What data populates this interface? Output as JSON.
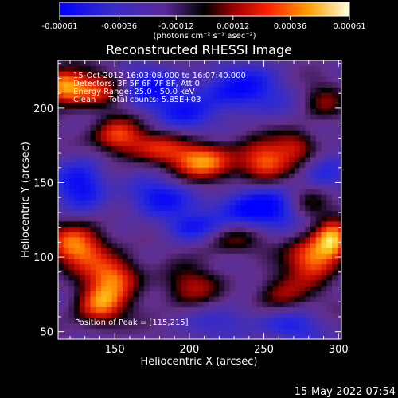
{
  "chart_data": {
    "type": "heatmap",
    "title": "Reconstructed RHESSI Image",
    "xlabel": "Heliocentric X (arcsec)",
    "ylabel": "Heliocentric Y (arcsec)",
    "xlim": [
      112,
      302
    ],
    "ylim": [
      45,
      232
    ],
    "x_ticks": [
      150,
      200,
      250,
      300
    ],
    "y_ticks": [
      50,
      100,
      150,
      200
    ],
    "colorbar": {
      "min": -0.00061,
      "max": 0.00061,
      "tick_labels": [
        "-0.00061",
        "-0.00036",
        "-0.00012",
        "0.00012",
        "0.00036",
        "0.00061"
      ],
      "tick_values": [
        -0.00061,
        -0.00036,
        -0.00012,
        0.00012,
        0.00036,
        0.00061
      ],
      "unit_label": "(photons cm⁻² s⁻¹ asec⁻²)"
    },
    "annotations": [
      "15-Oct-2012 16:03:08.000 to 16:07:40.000",
      "Detectors: 3F 5F 6F 7F 8F, Att 0",
      "Energy Range: 25.0 - 50.0 keV",
      "Clean     Total counts: 5.85E+03"
    ],
    "peak_label": "Position of Peak = [115,215]",
    "peak_position": [
      115,
      215
    ],
    "blobs": [
      {
        "x": 115,
        "y": 215,
        "amp": 1.0,
        "sx": 10,
        "sy": 8
      },
      {
        "x": 138,
        "y": 212,
        "amp": 0.75,
        "sx": 14,
        "sy": 9
      },
      {
        "x": 152,
        "y": 182,
        "amp": 0.85,
        "sx": 12,
        "sy": 9
      },
      {
        "x": 178,
        "y": 173,
        "amp": 0.55,
        "sx": 14,
        "sy": 8
      },
      {
        "x": 210,
        "y": 165,
        "amp": 0.95,
        "sx": 16,
        "sy": 9
      },
      {
        "x": 250,
        "y": 164,
        "amp": 0.85,
        "sx": 12,
        "sy": 10
      },
      {
        "x": 272,
        "y": 176,
        "amp": 0.55,
        "sx": 10,
        "sy": 8
      },
      {
        "x": 290,
        "y": 205,
        "amp": 0.4,
        "sx": 10,
        "sy": 9
      },
      {
        "x": 125,
        "y": 108,
        "amp": 0.95,
        "sx": 14,
        "sy": 11
      },
      {
        "x": 150,
        "y": 88,
        "amp": 0.8,
        "sx": 13,
        "sy": 10
      },
      {
        "x": 140,
        "y": 68,
        "amp": 0.9,
        "sx": 12,
        "sy": 10
      },
      {
        "x": 200,
        "y": 80,
        "amp": 0.55,
        "sx": 14,
        "sy": 10
      },
      {
        "x": 230,
        "y": 112,
        "amp": 0.5,
        "sx": 14,
        "sy": 8
      },
      {
        "x": 283,
        "y": 100,
        "amp": 0.9,
        "sx": 12,
        "sy": 11
      },
      {
        "x": 296,
        "y": 112,
        "amp": 1.0,
        "sx": 8,
        "sy": 9
      },
      {
        "x": 262,
        "y": 75,
        "amp": 0.55,
        "sx": 13,
        "sy": 10
      },
      {
        "x": 280,
        "y": 135,
        "amp": 0.45,
        "sx": 10,
        "sy": 8
      },
      {
        "x": 170,
        "y": 212,
        "amp": -0.6,
        "sx": 16,
        "sy": 10
      },
      {
        "x": 232,
        "y": 212,
        "amp": -0.65,
        "sx": 20,
        "sy": 11
      },
      {
        "x": 195,
        "y": 195,
        "amp": -0.4,
        "sx": 14,
        "sy": 8
      },
      {
        "x": 128,
        "y": 150,
        "amp": -0.65,
        "sx": 12,
        "sy": 12
      },
      {
        "x": 178,
        "y": 140,
        "amp": -0.55,
        "sx": 16,
        "sy": 9
      },
      {
        "x": 245,
        "y": 132,
        "amp": -0.8,
        "sx": 20,
        "sy": 10
      },
      {
        "x": 200,
        "y": 120,
        "amp": -0.45,
        "sx": 14,
        "sy": 7
      },
      {
        "x": 268,
        "y": 55,
        "amp": -0.45,
        "sx": 14,
        "sy": 8
      },
      {
        "x": 225,
        "y": 58,
        "amp": -0.35,
        "sx": 16,
        "sy": 8
      },
      {
        "x": 290,
        "y": 155,
        "amp": -0.4,
        "sx": 10,
        "sy": 8
      }
    ]
  },
  "footer": {
    "timestamp": "15-May-2022 07:54"
  }
}
